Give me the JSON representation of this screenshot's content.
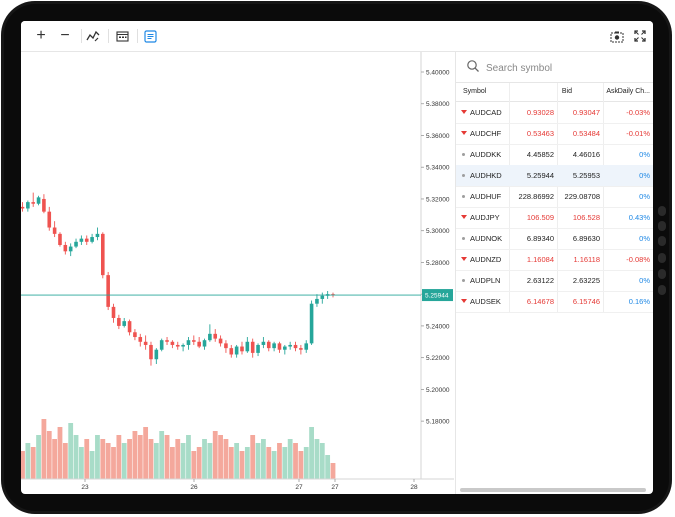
{
  "toolbar": {
    "zoom_in": "+",
    "zoom_out": "−",
    "icons": [
      "zoom-in-icon",
      "zoom-out-icon",
      "indicators-icon",
      "calendar-icon",
      "details-icon",
      "camera-icon",
      "fullscreen-icon"
    ]
  },
  "price_axis": {
    "ticks": [
      "5.40000",
      "5.38000",
      "5.36000",
      "5.34000",
      "5.32000",
      "5.30000",
      "5.28000",
      "5.26000",
      "5.24000",
      "5.22000",
      "5.20000",
      "5.18000"
    ],
    "current_price_label": "5.25944"
  },
  "time_axis": {
    "ticks": [
      "23",
      "26",
      "27",
      "27",
      "28"
    ]
  },
  "chart_data": {
    "type": "candlestick",
    "ylim": [
      5.17,
      5.41
    ],
    "current_price": 5.25944,
    "ohlc": [
      [
        5.315,
        5.318,
        5.312,
        5.314
      ],
      [
        5.314,
        5.319,
        5.312,
        5.318
      ],
      [
        5.318,
        5.324,
        5.315,
        5.317
      ],
      [
        5.317,
        5.322,
        5.316,
        5.321
      ],
      [
        5.32,
        5.323,
        5.311,
        5.312
      ],
      [
        5.312,
        5.315,
        5.3,
        5.302
      ],
      [
        5.302,
        5.306,
        5.296,
        5.298
      ],
      [
        5.298,
        5.299,
        5.29,
        5.291
      ],
      [
        5.291,
        5.293,
        5.285,
        5.287
      ],
      [
        5.287,
        5.292,
        5.284,
        5.29
      ],
      [
        5.29,
        5.295,
        5.289,
        5.293
      ],
      [
        5.293,
        5.297,
        5.291,
        5.295
      ],
      [
        5.295,
        5.297,
        5.291,
        5.293
      ],
      [
        5.293,
        5.298,
        5.292,
        5.296
      ],
      [
        5.296,
        5.302,
        5.294,
        5.298
      ],
      [
        5.298,
        5.299,
        5.27,
        5.272
      ],
      [
        5.272,
        5.274,
        5.25,
        5.252
      ],
      [
        5.252,
        5.254,
        5.242,
        5.245
      ],
      [
        5.245,
        5.247,
        5.238,
        5.24
      ],
      [
        5.24,
        5.245,
        5.239,
        5.243
      ],
      [
        5.243,
        5.244,
        5.234,
        5.236
      ],
      [
        5.236,
        5.238,
        5.231,
        5.233
      ],
      [
        5.233,
        5.235,
        5.227,
        5.23
      ],
      [
        5.23,
        5.234,
        5.225,
        5.228
      ],
      [
        5.228,
        5.23,
        5.215,
        5.219
      ],
      [
        5.219,
        5.226,
        5.216,
        5.225
      ],
      [
        5.225,
        5.232,
        5.224,
        5.231
      ],
      [
        5.231,
        5.233,
        5.228,
        5.23
      ],
      [
        5.23,
        5.231,
        5.226,
        5.228
      ],
      [
        5.228,
        5.23,
        5.225,
        5.227
      ],
      [
        5.227,
        5.229,
        5.224,
        5.228
      ],
      [
        5.228,
        5.233,
        5.225,
        5.231
      ],
      [
        5.231,
        5.234,
        5.228,
        5.23
      ],
      [
        5.23,
        5.233,
        5.226,
        5.227
      ],
      [
        5.227,
        5.232,
        5.225,
        5.231
      ],
      [
        5.231,
        5.241,
        5.23,
        5.235
      ],
      [
        5.235,
        5.238,
        5.23,
        5.232
      ],
      [
        5.232,
        5.234,
        5.227,
        5.229
      ],
      [
        5.229,
        5.231,
        5.223,
        5.226
      ],
      [
        5.226,
        5.228,
        5.22,
        5.222
      ],
      [
        5.222,
        5.228,
        5.22,
        5.227
      ],
      [
        5.227,
        5.23,
        5.222,
        5.224
      ],
      [
        5.224,
        5.233,
        5.223,
        5.23
      ],
      [
        5.23,
        5.232,
        5.22,
        5.223
      ],
      [
        5.223,
        5.229,
        5.221,
        5.228
      ],
      [
        5.228,
        5.233,
        5.226,
        5.23
      ],
      [
        5.23,
        5.231,
        5.224,
        5.226
      ],
      [
        5.226,
        5.23,
        5.224,
        5.229
      ],
      [
        5.229,
        5.23,
        5.223,
        5.225
      ],
      [
        5.225,
        5.228,
        5.222,
        5.227
      ],
      [
        5.227,
        5.23,
        5.225,
        5.228
      ],
      [
        5.228,
        5.23,
        5.224,
        5.226
      ],
      [
        5.226,
        5.228,
        5.222,
        5.225
      ],
      [
        5.225,
        5.231,
        5.223,
        5.229
      ],
      [
        5.229,
        5.256,
        5.228,
        5.254
      ],
      [
        5.254,
        5.26,
        5.252,
        5.257
      ],
      [
        5.257,
        5.261,
        5.254,
        5.259
      ],
      [
        5.259,
        5.262,
        5.257,
        5.26
      ],
      [
        5.26,
        5.261,
        5.258,
        5.2594
      ]
    ],
    "volume": [
      0.35,
      0.45,
      0.4,
      0.55,
      0.75,
      0.6,
      0.5,
      0.65,
      0.45,
      0.7,
      0.55,
      0.4,
      0.5,
      0.35,
      0.55,
      0.5,
      0.45,
      0.4,
      0.55,
      0.45,
      0.5,
      0.6,
      0.55,
      0.65,
      0.5,
      0.45,
      0.6,
      0.55,
      0.4,
      0.5,
      0.45,
      0.55,
      0.35,
      0.4,
      0.5,
      0.45,
      0.6,
      0.55,
      0.5,
      0.4,
      0.45,
      0.35,
      0.4,
      0.55,
      0.45,
      0.5,
      0.4,
      0.35,
      0.45,
      0.4,
      0.5,
      0.45,
      0.35,
      0.4,
      0.65,
      0.5,
      0.45,
      0.3,
      0.2
    ]
  },
  "watchlist": {
    "search_placeholder": "Search symbol",
    "columns": {
      "symbol": "Symbol",
      "bid": "Bid",
      "ask": "Ask",
      "change": "Daily Ch..."
    },
    "colors": {
      "down": "#e53935",
      "up": "#1e88e5",
      "neutral": "#9e9e9e",
      "text": "#222222"
    },
    "rows": [
      {
        "symbol": "AUDCAD",
        "bid": "0.93028",
        "ask": "0.93047",
        "change": "-0.03%",
        "trend": "down"
      },
      {
        "symbol": "AUDCHF",
        "bid": "0.53463",
        "ask": "0.53484",
        "change": "-0.01%",
        "trend": "down"
      },
      {
        "symbol": "AUDDKK",
        "bid": "4.45852",
        "ask": "4.46016",
        "change": "0%",
        "trend": "flat"
      },
      {
        "symbol": "AUDHKD",
        "bid": "5.25944",
        "ask": "5.25953",
        "change": "0%",
        "trend": "flat",
        "selected": true
      },
      {
        "symbol": "AUDHUF",
        "bid": "228.86992",
        "ask": "229.08708",
        "change": "0%",
        "trend": "flat"
      },
      {
        "symbol": "AUDJPY",
        "bid": "106.509",
        "ask": "106.528",
        "change": "0.43%",
        "trend": "down"
      },
      {
        "symbol": "AUDNOK",
        "bid": "6.89340",
        "ask": "6.89630",
        "change": "0%",
        "trend": "flat"
      },
      {
        "symbol": "AUDNZD",
        "bid": "1.16084",
        "ask": "1.16118",
        "change": "-0.08%",
        "trend": "down"
      },
      {
        "symbol": "AUDPLN",
        "bid": "2.63122",
        "ask": "2.63225",
        "change": "0%",
        "trend": "flat"
      },
      {
        "symbol": "AUDSEK",
        "bid": "6.14678",
        "ask": "6.15746",
        "change": "0.16%",
        "trend": "down"
      }
    ]
  }
}
